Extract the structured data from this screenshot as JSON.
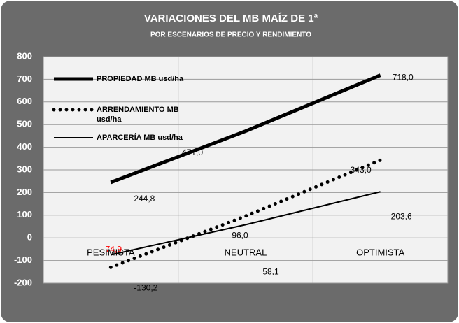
{
  "chart_data": {
    "type": "line",
    "title": "VARIACIONES DEL MB MAÍZ DE 1ª",
    "subtitle": "POR ESCENARIOS  DE PRECIO Y RENDIMIENTO",
    "categories": [
      "PESIMISTA",
      "NEUTRAL",
      "OPTIMISTA"
    ],
    "ylim": [
      -200,
      800
    ],
    "yticks": [
      -200,
      -100,
      0,
      100,
      200,
      300,
      400,
      500,
      600,
      700,
      800
    ],
    "grid": true,
    "legend": "top-left",
    "series": [
      {
        "name": "PROPIEDAD MB usd/ha",
        "color": "#000000",
        "line_style": "solid",
        "line_width": 5,
        "values": [
          244.8,
          471.0,
          718.0
        ],
        "value_labels": [
          "244,8",
          "471,0",
          "718,0"
        ],
        "label_colors": [
          "#000000",
          "#000000",
          "#000000"
        ]
      },
      {
        "name": "ARRENDAMIENTO MB usd/ha",
        "color": "#000000",
        "line_style": "dotted",
        "line_width": 5,
        "values": [
          -130.2,
          96.0,
          343.0
        ],
        "value_labels": [
          "-130,2",
          "96,0",
          "343,0"
        ],
        "label_colors": [
          "#000000",
          "#000000",
          "#000000"
        ]
      },
      {
        "name": "APARCERÍA MB usd/ha",
        "color": "#000000",
        "line_style": "solid",
        "line_width": 2,
        "values": [
          -74.9,
          58.1,
          203.6
        ],
        "value_labels": [
          "-74,9",
          "58,1",
          "203,6"
        ],
        "label_colors": [
          "#ff0000",
          "#000000",
          "#000000"
        ]
      }
    ]
  }
}
